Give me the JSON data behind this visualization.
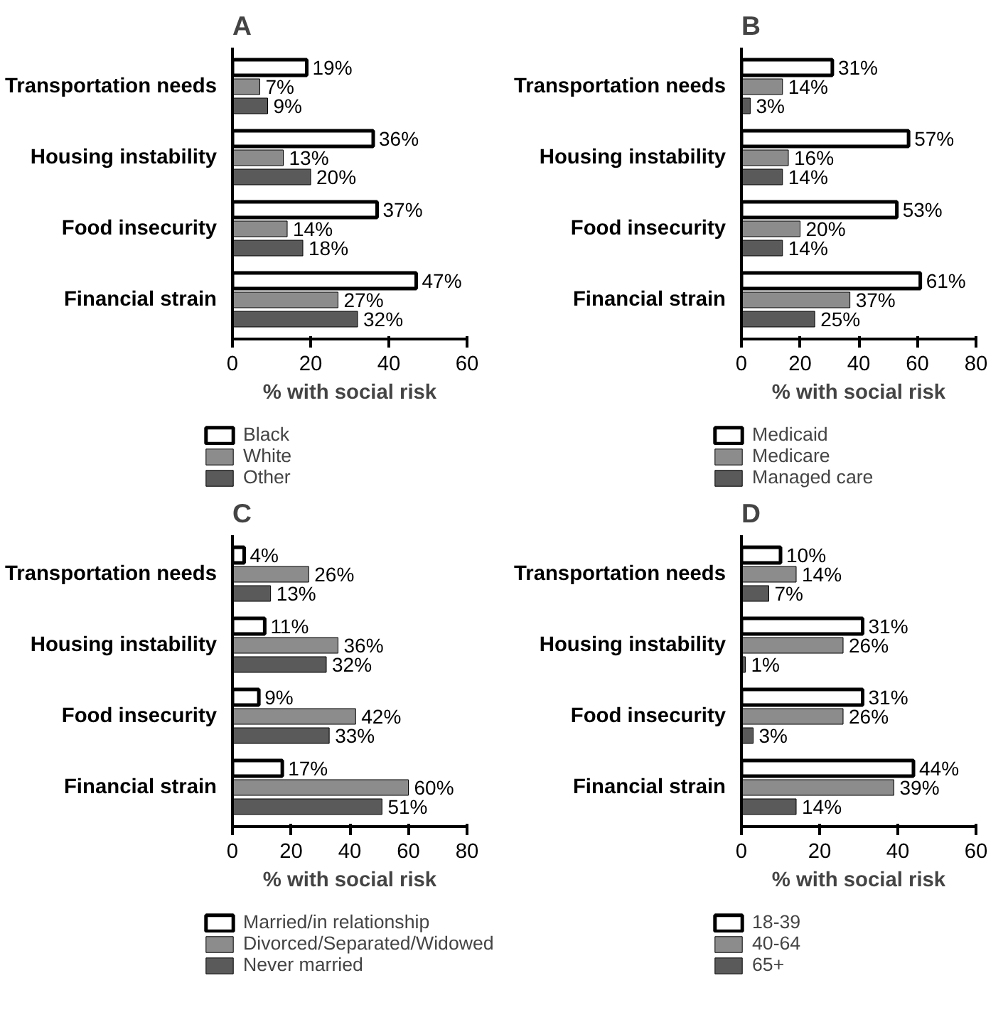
{
  "chart_data": [
    {
      "type": "bar",
      "orientation": "horizontal",
      "title": "A",
      "xlabel": "% with social risk",
      "categories": [
        "Transportation needs",
        "Housing instability",
        "Food insecurity",
        "Financial strain"
      ],
      "xlim": [
        0,
        60
      ],
      "xticks": [
        0,
        20,
        40,
        60
      ],
      "grid": false,
      "legend": "bottom",
      "series": [
        {
          "name": "Black",
          "color": "#ffffff",
          "values": [
            19,
            36,
            37,
            47
          ],
          "value_labels": [
            "19%",
            "36%",
            "37%",
            "47%"
          ]
        },
        {
          "name": "White",
          "color": "#8c8c8c",
          "values": [
            7,
            13,
            14,
            27
          ],
          "value_labels": [
            "7%",
            "13%",
            "14%",
            "27%"
          ]
        },
        {
          "name": "Other",
          "color": "#5a5a5a",
          "values": [
            9,
            20,
            18,
            32
          ],
          "value_labels": [
            "9%",
            "20%",
            "18%",
            "32%"
          ]
        }
      ]
    },
    {
      "type": "bar",
      "orientation": "horizontal",
      "title": "B",
      "xlabel": "% with social risk",
      "categories": [
        "Transportation needs",
        "Housing instability",
        "Food insecurity",
        "Financial strain"
      ],
      "xlim": [
        0,
        80
      ],
      "xticks": [
        0,
        20,
        40,
        60,
        80
      ],
      "grid": false,
      "legend": "bottom",
      "series": [
        {
          "name": "Medicaid",
          "color": "#ffffff",
          "values": [
            31,
            57,
            53,
            61
          ],
          "value_labels": [
            "31%",
            "57%",
            "53%",
            "61%"
          ]
        },
        {
          "name": "Medicare",
          "color": "#8c8c8c",
          "values": [
            14,
            16,
            20,
            37
          ],
          "value_labels": [
            "14%",
            "16%",
            "20%",
            "37%"
          ]
        },
        {
          "name": "Managed care",
          "color": "#5a5a5a",
          "values": [
            3,
            14,
            14,
            25
          ],
          "value_labels": [
            "3%",
            "14%",
            "14%",
            "25%"
          ]
        }
      ]
    },
    {
      "type": "bar",
      "orientation": "horizontal",
      "title": "C",
      "xlabel": "% with social risk",
      "categories": [
        "Transportation needs",
        "Housing instability",
        "Food insecurity",
        "Financial strain"
      ],
      "xlim": [
        0,
        80
      ],
      "xticks": [
        0,
        20,
        40,
        60,
        80
      ],
      "grid": false,
      "legend": "bottom",
      "series": [
        {
          "name": "Married/in relationship",
          "color": "#ffffff",
          "values": [
            4,
            11,
            9,
            17
          ],
          "value_labels": [
            "4%",
            "11%",
            "9%",
            "17%"
          ]
        },
        {
          "name": "Divorced/Separated/Widowed",
          "color": "#8c8c8c",
          "values": [
            26,
            36,
            42,
            60
          ],
          "value_labels": [
            "26%",
            "36%",
            "42%",
            "60%"
          ]
        },
        {
          "name": "Never married",
          "color": "#5a5a5a",
          "values": [
            13,
            32,
            33,
            51
          ],
          "value_labels": [
            "13%",
            "32%",
            "33%",
            "51%"
          ]
        }
      ]
    },
    {
      "type": "bar",
      "orientation": "horizontal",
      "title": "D",
      "xlabel": "% with social risk",
      "categories": [
        "Transportation needs",
        "Housing instability",
        "Food insecurity",
        "Financial strain"
      ],
      "xlim": [
        0,
        60
      ],
      "xticks": [
        0,
        20,
        40,
        60
      ],
      "grid": false,
      "legend": "bottom",
      "series": [
        {
          "name": "18-39",
          "color": "#ffffff",
          "values": [
            10,
            31,
            31,
            44
          ],
          "value_labels": [
            "10%",
            "31%",
            "31%",
            "44%"
          ]
        },
        {
          "name": "40-64",
          "color": "#8c8c8c",
          "values": [
            14,
            26,
            26,
            39
          ],
          "value_labels": [
            "14%",
            "26%",
            "26%",
            "39%"
          ]
        },
        {
          "name": "65+",
          "color": "#5a5a5a",
          "values": [
            7,
            1,
            3,
            14
          ],
          "value_labels": [
            "7%",
            "1%",
            "3%",
            "14%"
          ]
        }
      ]
    }
  ]
}
